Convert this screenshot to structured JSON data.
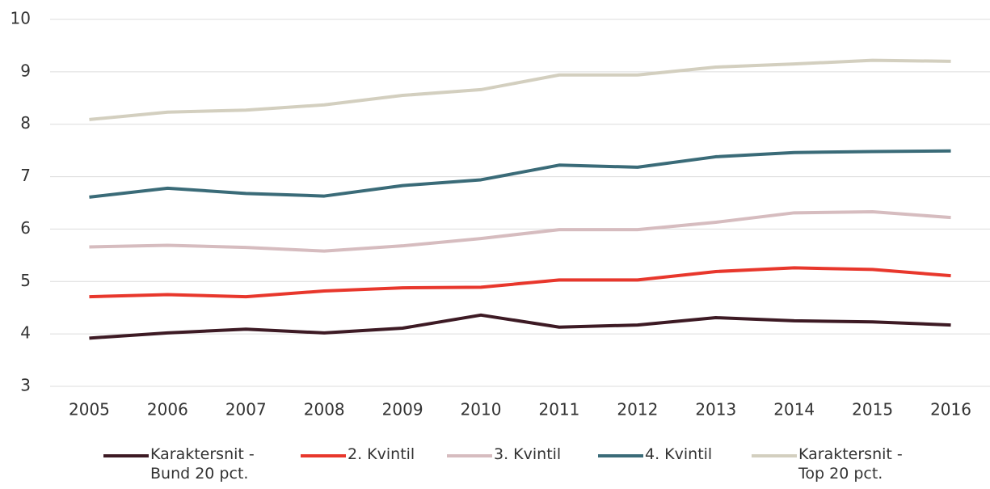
{
  "chart_data": {
    "type": "line",
    "categories": [
      "2005",
      "2006",
      "2007",
      "2008",
      "2009",
      "2010",
      "2011",
      "2012",
      "2013",
      "2014",
      "2015",
      "2016"
    ],
    "series": [
      {
        "name": "Karaktersnit - Bund 20 pct.",
        "color": "#3d1a24",
        "values": [
          3.92,
          4.02,
          4.09,
          4.02,
          4.11,
          4.36,
          4.13,
          4.17,
          4.31,
          4.25,
          4.23,
          4.17
        ]
      },
      {
        "name": "2. Kvintil",
        "color": "#e8372c",
        "values": [
          4.71,
          4.75,
          4.71,
          4.82,
          4.88,
          4.89,
          5.03,
          5.03,
          5.19,
          5.26,
          5.23,
          5.11
        ]
      },
      {
        "name": "3. Kvintil",
        "color": "#d6bcbf",
        "values": [
          5.66,
          5.69,
          5.65,
          5.58,
          5.68,
          5.82,
          5.99,
          5.99,
          6.13,
          6.31,
          6.33,
          6.22
        ]
      },
      {
        "name": "4. Kvintil",
        "color": "#3a6b78",
        "values": [
          6.61,
          6.78,
          6.68,
          6.63,
          6.83,
          6.94,
          7.22,
          7.18,
          7.38,
          7.46,
          7.48,
          7.49
        ]
      },
      {
        "name": "Karaktersnit - Top 20 pct.",
        "color": "#d3cfbf",
        "values": [
          8.09,
          8.23,
          8.27,
          8.37,
          8.55,
          8.66,
          8.94,
          8.94,
          9.09,
          9.15,
          9.22,
          9.2
        ]
      }
    ],
    "ylim": [
      3,
      10
    ],
    "yticks": [
      3,
      4,
      5,
      6,
      7,
      8,
      9,
      10
    ],
    "grid": true,
    "legend": "bottom"
  }
}
